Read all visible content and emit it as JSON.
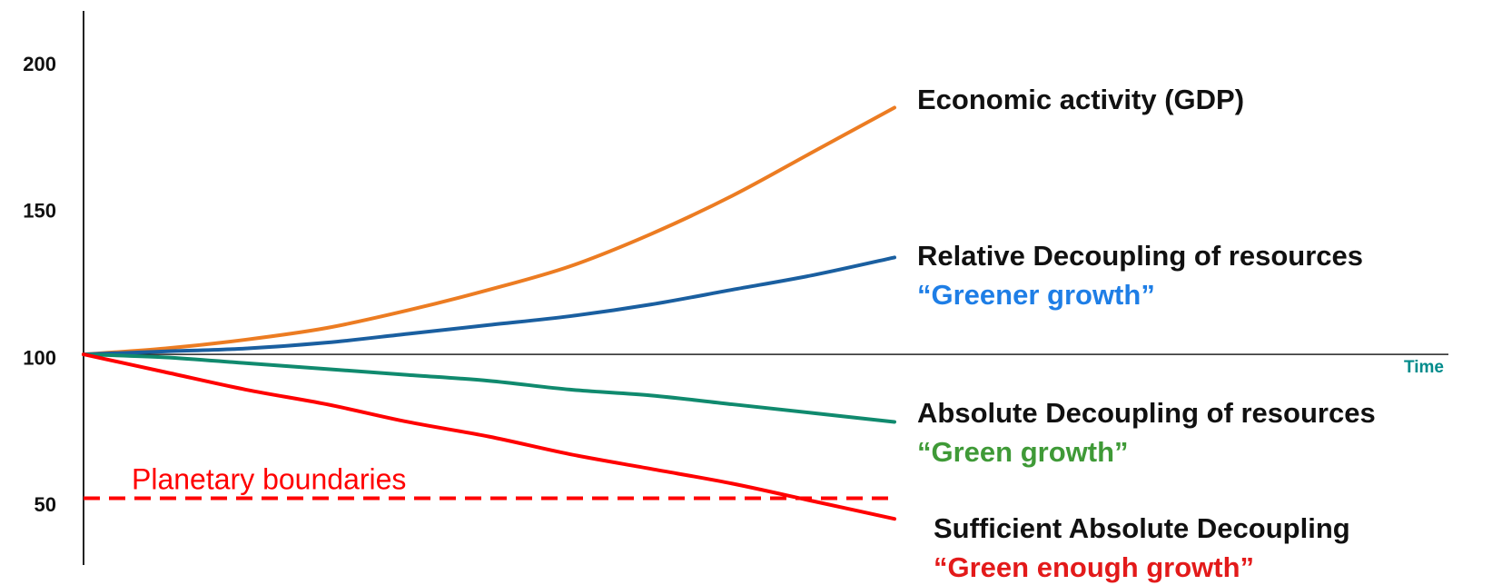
{
  "chart_data": {
    "type": "line",
    "title": "",
    "xlabel": "Time",
    "ylabel": "",
    "x_range": [
      0,
      10
    ],
    "ylim": [
      40,
      220
    ],
    "y_ticks": [
      "200",
      "150",
      "100",
      "50"
    ],
    "grid": false,
    "x_axis_color": "#008b8b",
    "reference_line": {
      "label": "Planetary boundaries",
      "y": 52,
      "color": "#ff0000",
      "style": "dashed"
    },
    "series": [
      {
        "name": "Economic activity (GDP)",
        "subtitle": "",
        "color": "#ec7c22",
        "subtitle_color": "#111111",
        "x": [
          0,
          1,
          2,
          3,
          4,
          5,
          6,
          7,
          8,
          9,
          10
        ],
        "values": [
          101,
          103,
          106,
          110,
          116,
          123,
          131,
          142,
          155,
          170,
          185
        ]
      },
      {
        "name": "Relative Decoupling of resources",
        "subtitle": "“Greener growth”",
        "color": "#1a5fa0",
        "subtitle_color": "#1e7ee6",
        "x": [
          0,
          1,
          2,
          3,
          4,
          5,
          6,
          7,
          8,
          9,
          10
        ],
        "values": [
          101,
          102,
          103,
          105,
          108,
          111,
          114,
          118,
          123,
          128,
          134
        ]
      },
      {
        "name": "Absolute Decoupling of resources",
        "subtitle": "“Green growth”",
        "color": "#108a6e",
        "subtitle_color": "#3f9a37",
        "x": [
          0,
          1,
          2,
          3,
          4,
          5,
          6,
          7,
          8,
          9,
          10
        ],
        "values": [
          101,
          100,
          98,
          96,
          94,
          92,
          89,
          87,
          84,
          81,
          78
        ]
      },
      {
        "name": "Sufficient Absolute Decoupling",
        "subtitle": "“Green enough growth”",
        "color": "#ff0000",
        "subtitle_color": "#e31a1a",
        "x": [
          0,
          1,
          2,
          3,
          4,
          5,
          6,
          7,
          8,
          9,
          10
        ],
        "values": [
          101,
          95,
          89,
          84,
          78,
          73,
          67,
          62,
          57,
          51,
          45
        ]
      }
    ]
  }
}
